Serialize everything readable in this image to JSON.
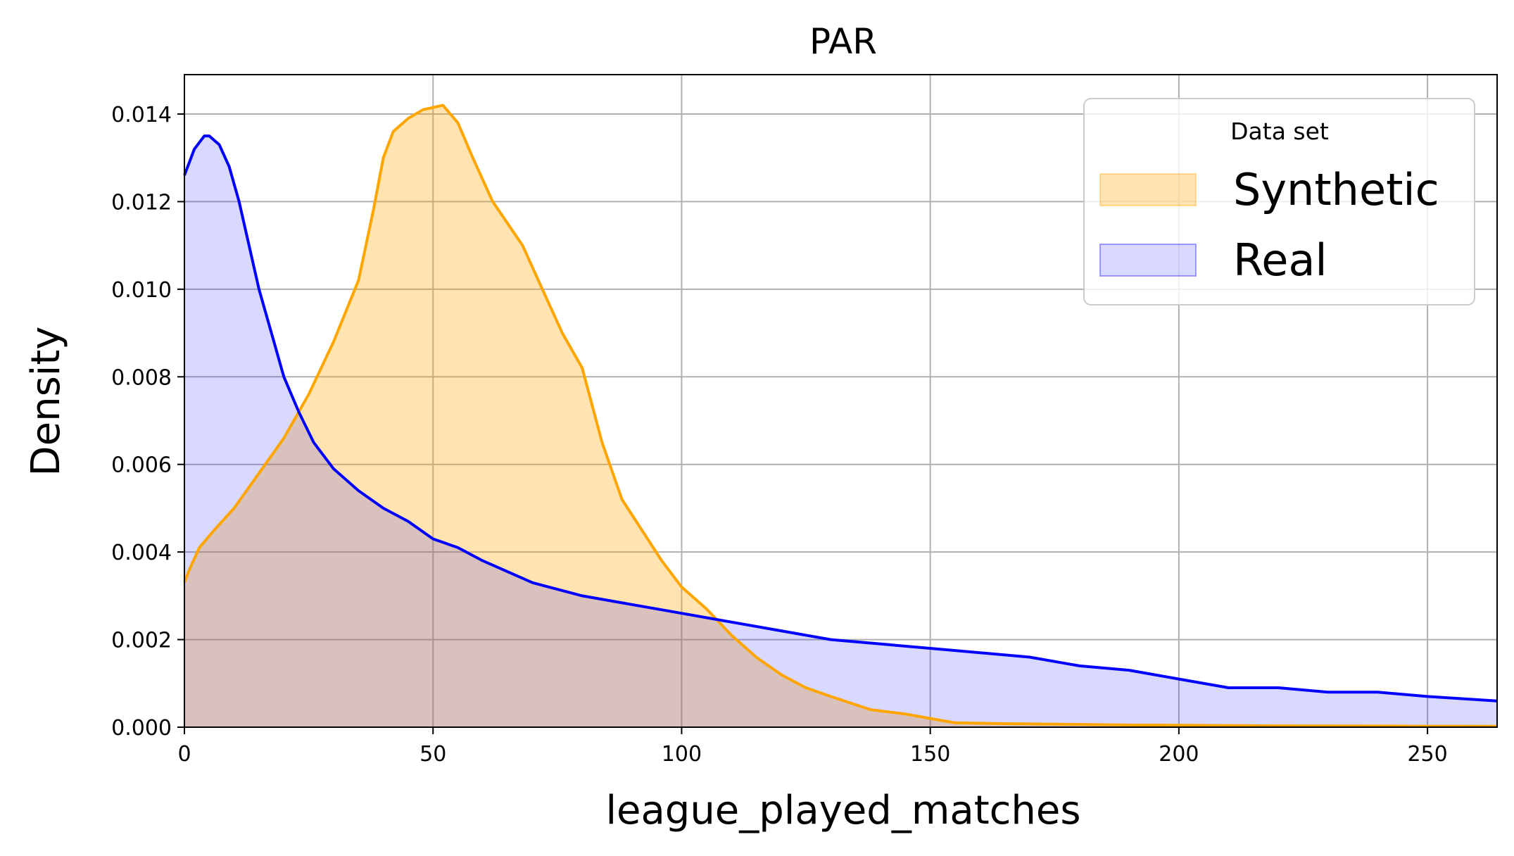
{
  "chart_data": {
    "type": "area",
    "title": "PAR",
    "xlabel": "league_played_matches",
    "ylabel": "Density",
    "xlim": [
      0,
      264
    ],
    "ylim": [
      0,
      0.0149
    ],
    "grid": true,
    "x_ticks": [
      0,
      50,
      100,
      150,
      200,
      250
    ],
    "y_ticks": [
      0,
      0.002,
      0.004,
      0.006,
      0.008,
      0.01,
      0.012,
      0.014
    ],
    "x_tick_labels": [
      "0",
      "50",
      "100",
      "150",
      "200",
      "250"
    ],
    "y_tick_labels": [
      "0.000",
      "0.002",
      "0.004",
      "0.006",
      "0.008",
      "0.010",
      "0.012",
      "0.014"
    ],
    "legend": {
      "title": "Data set",
      "placement": "upper-right"
    },
    "series": [
      {
        "name": "Synthetic",
        "line_color": "#ffa500",
        "fill_color": "#ffa500",
        "fill_opacity": 0.3,
        "points": [
          [
            0,
            0.0033
          ],
          [
            1,
            0.0036
          ],
          [
            3,
            0.0041
          ],
          [
            6,
            0.0045
          ],
          [
            10,
            0.005
          ],
          [
            15,
            0.0058
          ],
          [
            20,
            0.0066
          ],
          [
            25,
            0.0076
          ],
          [
            30,
            0.0088
          ],
          [
            35,
            0.0102
          ],
          [
            38,
            0.0118
          ],
          [
            40,
            0.013
          ],
          [
            42,
            0.0136
          ],
          [
            45,
            0.0139
          ],
          [
            48,
            0.0141
          ],
          [
            52,
            0.0142
          ],
          [
            55,
            0.0138
          ],
          [
            58,
            0.013
          ],
          [
            62,
            0.012
          ],
          [
            68,
            0.011
          ],
          [
            72,
            0.01
          ],
          [
            76,
            0.009
          ],
          [
            80,
            0.0082
          ],
          [
            84,
            0.0065
          ],
          [
            88,
            0.0052
          ],
          [
            92,
            0.0045
          ],
          [
            96,
            0.0038
          ],
          [
            100,
            0.0032
          ],
          [
            105,
            0.0027
          ],
          [
            110,
            0.0021
          ],
          [
            115,
            0.0016
          ],
          [
            120,
            0.0012
          ],
          [
            125,
            0.0009
          ],
          [
            130,
            0.0007
          ],
          [
            138,
            0.0004
          ],
          [
            145,
            0.0003
          ],
          [
            150,
            0.0002
          ],
          [
            155,
            0.0001
          ],
          [
            165,
            8e-05
          ],
          [
            190,
            5e-05
          ],
          [
            220,
            3e-05
          ],
          [
            264,
            2e-05
          ]
        ]
      },
      {
        "name": "Real",
        "line_color": "#0000ff",
        "fill_color": "#0000ff",
        "fill_opacity": 0.15,
        "points": [
          [
            0,
            0.0126
          ],
          [
            2,
            0.0132
          ],
          [
            4,
            0.0135
          ],
          [
            5,
            0.0135
          ],
          [
            7,
            0.0133
          ],
          [
            9,
            0.0128
          ],
          [
            11,
            0.012
          ],
          [
            13,
            0.011
          ],
          [
            15,
            0.01
          ],
          [
            18,
            0.0088
          ],
          [
            20,
            0.008
          ],
          [
            23,
            0.0072
          ],
          [
            26,
            0.0065
          ],
          [
            30,
            0.0059
          ],
          [
            35,
            0.0054
          ],
          [
            40,
            0.005
          ],
          [
            45,
            0.0047
          ],
          [
            50,
            0.0043
          ],
          [
            55,
            0.0041
          ],
          [
            60,
            0.0038
          ],
          [
            70,
            0.0033
          ],
          [
            80,
            0.003
          ],
          [
            90,
            0.0028
          ],
          [
            100,
            0.0026
          ],
          [
            110,
            0.0024
          ],
          [
            120,
            0.0022
          ],
          [
            130,
            0.002
          ],
          [
            140,
            0.0019
          ],
          [
            150,
            0.0018
          ],
          [
            160,
            0.0017
          ],
          [
            170,
            0.0016
          ],
          [
            180,
            0.0014
          ],
          [
            190,
            0.0013
          ],
          [
            200,
            0.0011
          ],
          [
            210,
            0.0009
          ],
          [
            220,
            0.0009
          ],
          [
            230,
            0.0008
          ],
          [
            240,
            0.0008
          ],
          [
            250,
            0.0007
          ],
          [
            264,
            0.0006
          ]
        ]
      }
    ]
  }
}
